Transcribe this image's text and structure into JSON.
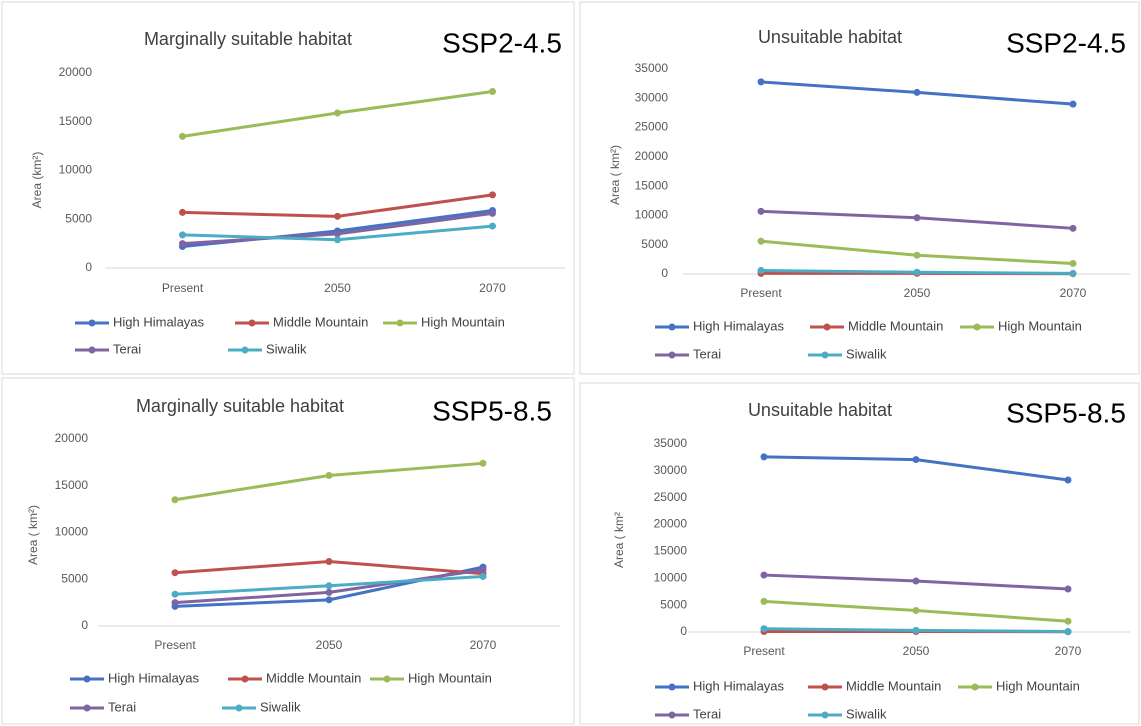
{
  "chart_data": [
    {
      "type": "line",
      "title": "Marginally suitable habitat",
      "annotation": "SSP2-4.5",
      "ylabel": "Area (km²)",
      "categories": [
        "Present",
        "2050",
        "2070"
      ],
      "ylim": [
        0,
        20000
      ],
      "yticks": [
        0,
        5000,
        10000,
        15000,
        20000
      ],
      "grid": false,
      "series": [
        {
          "name": "High Himalayas",
          "color": "#4472c4",
          "values": [
            2200,
            3800,
            5900
          ]
        },
        {
          "name": "Middle Mountain",
          "color": "#c0504d",
          "values": [
            5700,
            5300,
            7500
          ]
        },
        {
          "name": "High Mountain",
          "color": "#9bbb59",
          "values": [
            13500,
            15900,
            18100
          ]
        },
        {
          "name": "Terai",
          "color": "#8064a2",
          "values": [
            2500,
            3500,
            5600
          ]
        },
        {
          "name": "Siwalik",
          "color": "#4bacc6",
          "values": [
            3400,
            2900,
            4300
          ]
        }
      ]
    },
    {
      "type": "line",
      "title": "Unsuitable habitat",
      "annotation": "SSP2-4.5",
      "ylabel": "Area ( km²)",
      "categories": [
        "Present",
        "2050",
        "2070"
      ],
      "ylim": [
        0,
        35000
      ],
      "yticks": [
        0,
        5000,
        10000,
        15000,
        20000,
        25000,
        30000,
        35000
      ],
      "grid": false,
      "series": [
        {
          "name": "High Himalayas",
          "color": "#4472c4",
          "values": [
            32800,
            31000,
            29000
          ]
        },
        {
          "name": "Middle Mountain",
          "color": "#c0504d",
          "values": [
            100,
            100,
            50
          ]
        },
        {
          "name": "High Mountain",
          "color": "#9bbb59",
          "values": [
            5600,
            3200,
            1800
          ]
        },
        {
          "name": "Terai",
          "color": "#8064a2",
          "values": [
            10700,
            9600,
            7800
          ]
        },
        {
          "name": "Siwalik",
          "color": "#4bacc6",
          "values": [
            600,
            300,
            100
          ]
        }
      ]
    },
    {
      "type": "line",
      "title": "Marginally suitable habitat",
      "annotation": "SSP5-8.5",
      "ylabel": "Area ( km²)",
      "categories": [
        "Present",
        "2050",
        "2070"
      ],
      "ylim": [
        0,
        20000
      ],
      "yticks": [
        0,
        5000,
        10000,
        15000,
        20000
      ],
      "grid": false,
      "series": [
        {
          "name": "High Himalayas",
          "color": "#4472c4",
          "values": [
            2100,
            2800,
            6300
          ]
        },
        {
          "name": "Middle Mountain",
          "color": "#c0504d",
          "values": [
            5700,
            6900,
            5600
          ]
        },
        {
          "name": "High Mountain",
          "color": "#9bbb59",
          "values": [
            13500,
            16100,
            17400
          ]
        },
        {
          "name": "Terai",
          "color": "#8064a2",
          "values": [
            2500,
            3600,
            6000
          ]
        },
        {
          "name": "Siwalik",
          "color": "#4bacc6",
          "values": [
            3400,
            4300,
            5300
          ]
        }
      ]
    },
    {
      "type": "line",
      "title": "Unsuitable habitat",
      "annotation": "SSP5-8.5",
      "ylabel": "Area ( km²",
      "categories": [
        "Present",
        "2050",
        "2070"
      ],
      "ylim": [
        0,
        35000
      ],
      "yticks": [
        0,
        5000,
        10000,
        15000,
        20000,
        25000,
        30000,
        35000
      ],
      "grid": false,
      "series": [
        {
          "name": "High Himalayas",
          "color": "#4472c4",
          "values": [
            32600,
            32100,
            28300
          ]
        },
        {
          "name": "Middle Mountain",
          "color": "#c0504d",
          "values": [
            100,
            100,
            50
          ]
        },
        {
          "name": "High Mountain",
          "color": "#9bbb59",
          "values": [
            5700,
            4000,
            2000
          ]
        },
        {
          "name": "Terai",
          "color": "#8064a2",
          "values": [
            10600,
            9500,
            8000
          ]
        },
        {
          "name": "Siwalik",
          "color": "#4bacc6",
          "values": [
            600,
            300,
            100
          ]
        }
      ]
    }
  ]
}
